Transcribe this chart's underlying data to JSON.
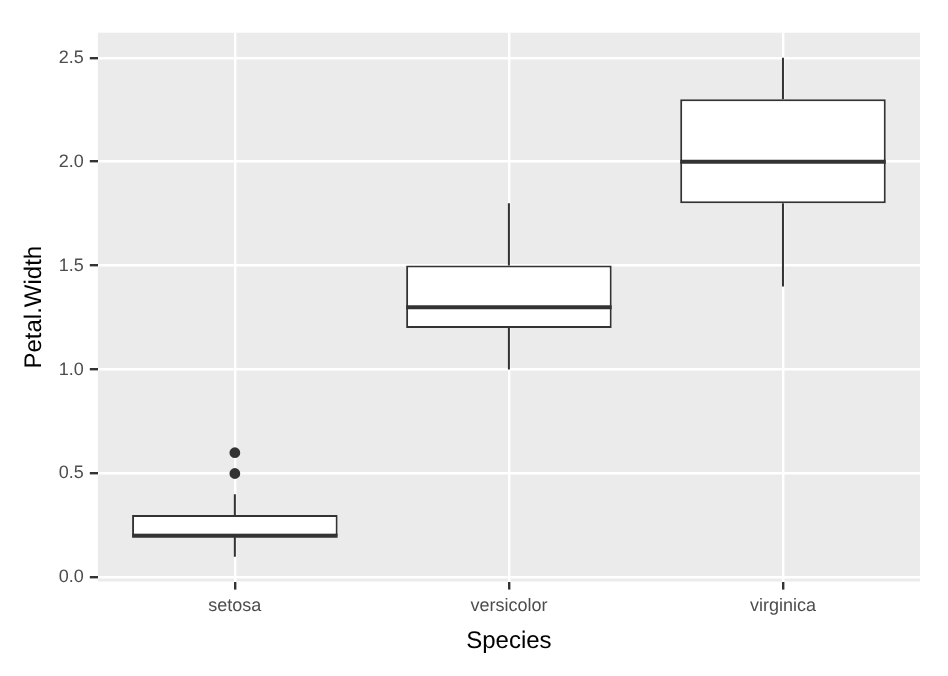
{
  "chart_data": {
    "type": "box",
    "xlabel": "Species",
    "ylabel": "Petal.Width",
    "categories": [
      "setosa",
      "versicolor",
      "virginica"
    ],
    "boxes": [
      {
        "low": 0.1,
        "q1": 0.2,
        "median": 0.2,
        "q3": 0.3,
        "high": 0.4,
        "outliers": [
          0.5,
          0.6
        ]
      },
      {
        "low": 1.0,
        "q1": 1.2,
        "median": 1.3,
        "q3": 1.5,
        "high": 1.8
      },
      {
        "low": 1.4,
        "q1": 1.8,
        "median": 2.0,
        "q3": 2.3,
        "high": 2.5
      }
    ],
    "ylim": [
      -0.02,
      2.62
    ],
    "yticks": [
      {
        "value": 0,
        "label": "0.0"
      },
      {
        "value": 0.5,
        "label": "0.5"
      },
      {
        "value": 1,
        "label": "1.0"
      },
      {
        "value": 1.5,
        "label": "1.5"
      },
      {
        "value": 2,
        "label": "2.0"
      },
      {
        "value": 2.5,
        "label": "2.5"
      }
    ],
    "grid": true,
    "legend": false
  }
}
